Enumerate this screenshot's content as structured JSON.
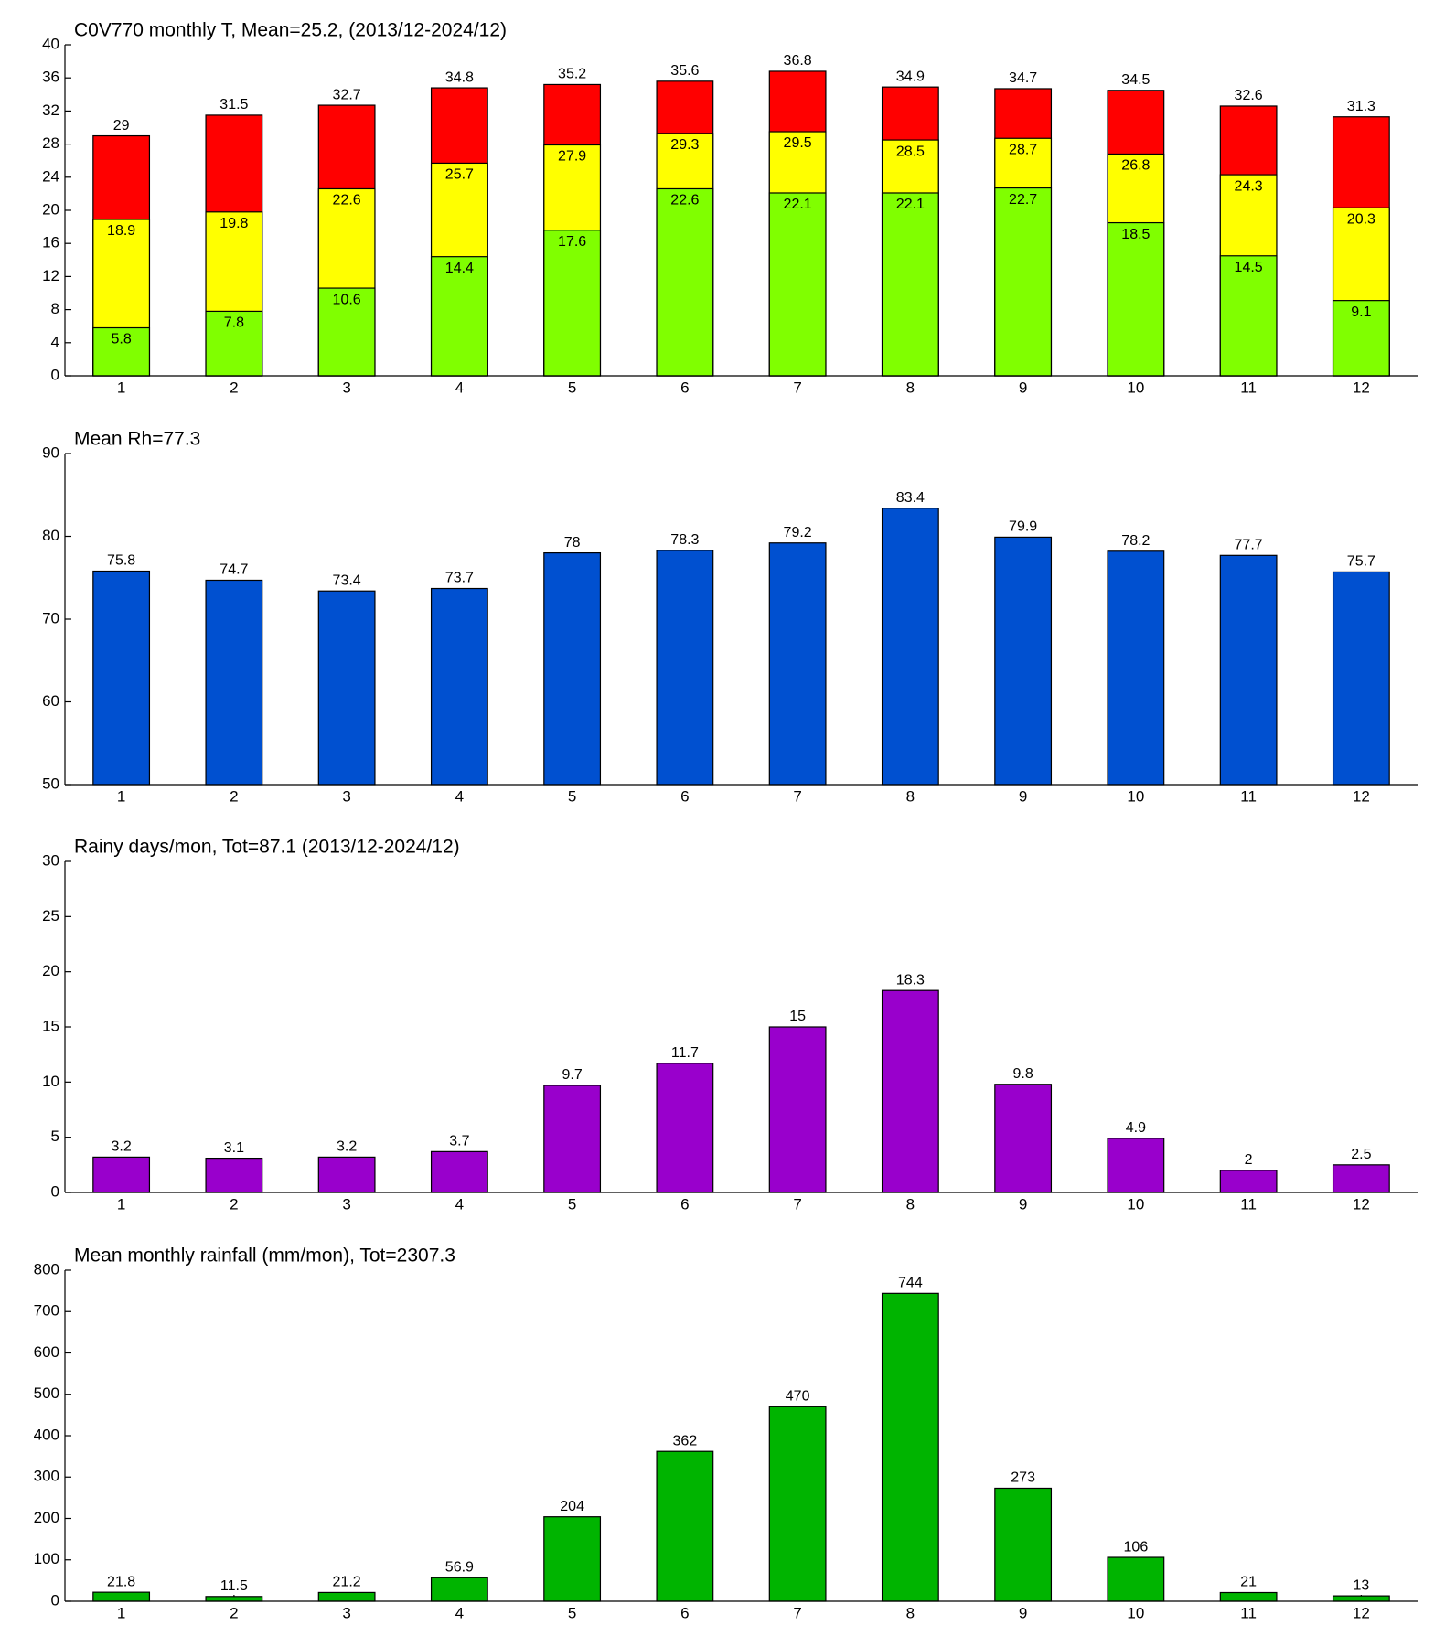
{
  "chart_data": [
    {
      "type": "bar",
      "title": "C0V770 monthly T, Mean=25.2, (2013/12-2024/12)",
      "categories": [
        "1",
        "2",
        "3",
        "4",
        "5",
        "6",
        "7",
        "8",
        "9",
        "10",
        "11",
        "12"
      ],
      "series": [
        {
          "color": "#ff0000",
          "values": [
            29,
            31.5,
            32.7,
            34.8,
            35.2,
            35.6,
            36.8,
            34.9,
            34.7,
            34.5,
            32.6,
            31.3
          ]
        },
        {
          "color": "#ffff00",
          "values": [
            18.9,
            19.8,
            22.6,
            25.7,
            27.9,
            29.3,
            29.5,
            28.5,
            28.7,
            26.8,
            24.3,
            20.3
          ]
        },
        {
          "color": "#80ff00",
          "values": [
            5.8,
            7.8,
            10.6,
            14.4,
            17.6,
            22.6,
            22.1,
            22.1,
            22.7,
            18.5,
            14.5,
            9.1
          ]
        }
      ],
      "ylim": [
        0,
        40
      ],
      "yticks": [
        0,
        4,
        8,
        12,
        16,
        20,
        24,
        28,
        32,
        36,
        40
      ]
    },
    {
      "type": "bar",
      "title": "Mean Rh=77.3",
      "categories": [
        "1",
        "2",
        "3",
        "4",
        "5",
        "6",
        "7",
        "8",
        "9",
        "10",
        "11",
        "12"
      ],
      "values": [
        75.8,
        74.7,
        73.4,
        73.7,
        78,
        78.3,
        79.2,
        83.4,
        79.9,
        78.2,
        77.7,
        75.7
      ],
      "color": "#0050d0",
      "ylim": [
        50,
        90
      ],
      "yticks": [
        50,
        60,
        70,
        80,
        90
      ]
    },
    {
      "type": "bar",
      "title": "Rainy days/mon, Tot=87.1 (2013/12-2024/12)",
      "categories": [
        "1",
        "2",
        "3",
        "4",
        "5",
        "6",
        "7",
        "8",
        "9",
        "10",
        "11",
        "12"
      ],
      "values": [
        3.2,
        3.1,
        3.2,
        3.7,
        9.7,
        11.7,
        15,
        18.3,
        9.8,
        4.9,
        2,
        2.5
      ],
      "color": "#9900cc",
      "ylim": [
        0,
        30
      ],
      "yticks": [
        0,
        5,
        10,
        15,
        20,
        25,
        30
      ]
    },
    {
      "type": "bar",
      "title": "Mean monthly rainfall (mm/mon), Tot=2307.3",
      "categories": [
        "1",
        "2",
        "3",
        "4",
        "5",
        "6",
        "7",
        "8",
        "9",
        "10",
        "11",
        "12"
      ],
      "values": [
        21.8,
        11.5,
        21.2,
        56.9,
        204,
        362,
        470,
        744,
        273,
        106,
        21,
        13
      ],
      "color": "#00b400",
      "ylim": [
        0,
        800
      ],
      "yticks": [
        0,
        100,
        200,
        300,
        400,
        500,
        600,
        700,
        800
      ]
    }
  ]
}
